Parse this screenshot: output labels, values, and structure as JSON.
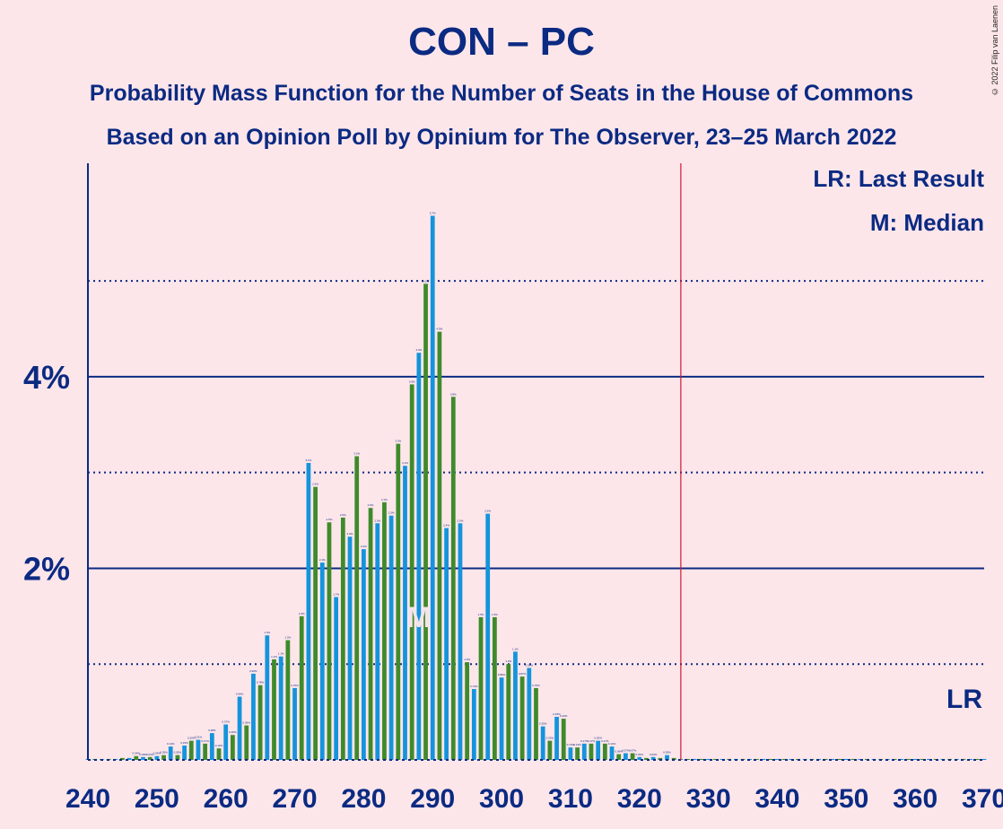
{
  "title": "CON – PC",
  "subtitle": "Probability Mass Function for the Number of Seats in the House of Commons",
  "subtitle2": "Based on an Opinion Poll by Opinium for The Observer, 23–25 March 2022",
  "copyright": "© 2022 Filip van Laenen",
  "legend": {
    "lr": "LR: Last Result",
    "m": "M: Median"
  },
  "colors": {
    "blue": "#1494dc",
    "green": "#3f8a2b",
    "navy": "#0b2a82",
    "red": "#cc1a33",
    "background": "#fde6ea"
  },
  "chart_data": {
    "type": "bar",
    "x_range": [
      240,
      370
    ],
    "x_ticks": [
      240,
      250,
      260,
      270,
      280,
      290,
      300,
      310,
      320,
      330,
      340,
      350,
      360,
      370
    ],
    "y_major_ticks": [
      {
        "value": 2,
        "label": "2%"
      },
      {
        "value": 4,
        "label": "4%"
      }
    ],
    "y_minor_gridlines": [
      1,
      3,
      5
    ],
    "ylim": [
      0,
      6.2
    ],
    "majority_line": 326,
    "median": 288,
    "median_label": "M",
    "last_result": 370,
    "last_result_label": "LR",
    "seats": [
      240,
      241,
      242,
      243,
      244,
      245,
      246,
      247,
      248,
      249,
      250,
      251,
      252,
      253,
      254,
      255,
      256,
      257,
      258,
      259,
      260,
      261,
      262,
      263,
      264,
      265,
      266,
      267,
      268,
      269,
      270,
      271,
      272,
      273,
      274,
      275,
      276,
      277,
      278,
      279,
      280,
      281,
      282,
      283,
      284,
      285,
      286,
      287,
      288,
      289,
      290,
      291,
      292,
      293,
      294,
      295,
      296,
      297,
      298,
      299,
      300,
      301,
      302,
      303,
      304,
      305,
      306,
      307,
      308,
      309,
      310,
      311,
      312,
      313,
      314,
      315,
      316,
      317,
      318,
      319,
      320,
      321,
      322,
      323,
      324,
      325,
      326,
      327,
      328,
      329,
      330,
      331,
      332,
      333,
      334,
      335,
      336,
      337,
      338,
      339,
      340,
      341,
      342,
      343,
      344,
      345,
      346,
      347,
      348,
      349,
      350,
      351,
      352,
      353,
      354,
      355,
      356,
      357,
      358,
      359,
      360,
      361,
      362,
      363,
      364,
      365,
      366,
      367,
      368,
      369,
      370
    ],
    "probabilities": [
      0.01,
      0.01,
      0.01,
      0.01,
      0.01,
      0.02,
      0.02,
      0.04,
      0.03,
      0.03,
      0.04,
      0.05,
      0.14,
      0.05,
      0.15,
      0.2,
      0.21,
      0.17,
      0.28,
      0.12,
      0.37,
      0.26,
      0.66,
      0.36,
      0.9,
      0.78,
      1.3,
      1.05,
      1.08,
      1.25,
      0.75,
      1.5,
      3.1,
      2.85,
      2.06,
      2.48,
      1.7,
      2.53,
      2.33,
      3.17,
      2.2,
      2.63,
      2.47,
      2.69,
      2.55,
      3.3,
      3.07,
      3.92,
      4.25,
      4.97,
      5.68,
      4.47,
      2.42,
      3.79,
      2.47,
      1.02,
      0.74,
      1.49,
      2.57,
      1.49,
      0.86,
      1.0,
      1.13,
      0.87,
      0.96,
      0.75,
      0.35,
      0.2,
      0.45,
      0.43,
      0.13,
      0.13,
      0.17,
      0.17,
      0.2,
      0.17,
      0.14,
      0.06,
      0.07,
      0.07,
      0.03,
      0.02,
      0.03,
      0.02,
      0.05,
      0.02,
      0.01,
      0.01,
      0.01,
      0.01,
      0.01,
      0.01,
      0.01,
      0.01,
      0.01,
      0.01,
      0.01,
      0.01,
      0.01,
      0.01,
      0.01,
      0.01,
      0.01,
      0.01,
      0.01,
      0.01,
      0.01,
      0.01,
      0.01,
      0.01,
      0.01,
      0.01,
      0.01,
      0.01,
      0.01,
      0.01,
      0.01,
      0.01,
      0.01,
      0.01,
      0.01,
      0.01,
      0.01,
      0.01,
      0.01,
      0.01,
      0.01,
      0.01,
      0.01,
      0.01,
      0.01
    ]
  }
}
